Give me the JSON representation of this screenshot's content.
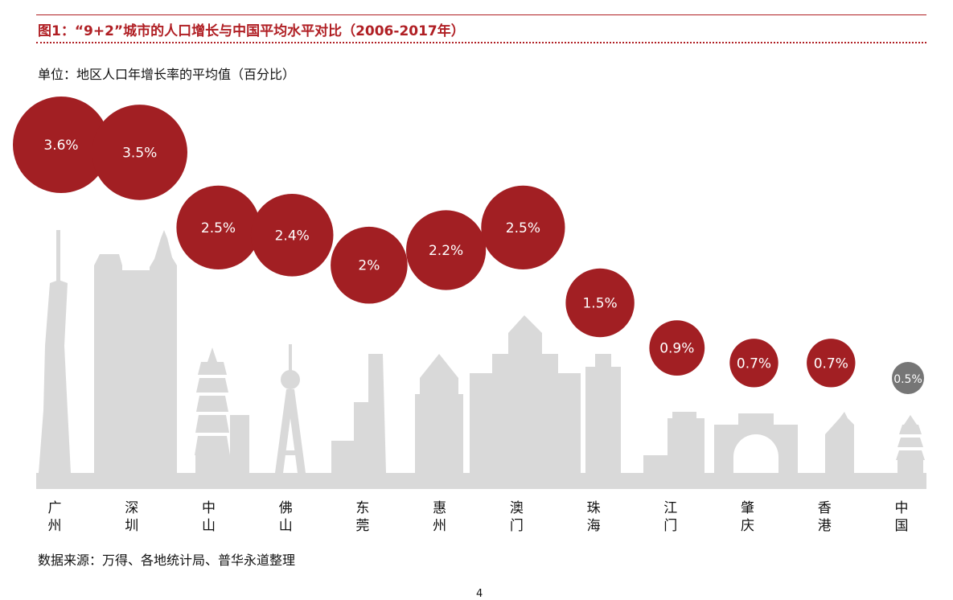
{
  "header": {
    "title": "图1：“9+2”城市的人口增长与中国平均水平对比（2006-2017年）",
    "unit": "单位：地区人口年增长率的平均值（百分比）"
  },
  "footer": {
    "source": "数据来源：万得、各地统计局、普华永道整理",
    "page_number": "4"
  },
  "colors": {
    "accent": "#b01f24",
    "bubble": "#a21f23",
    "bubble_china": "#767676",
    "skyline": "#d9d9d9"
  },
  "chart_data": {
    "type": "bubble",
    "categories": [
      "广州",
      "深圳",
      "中山",
      "佛山",
      "东莞",
      "惠州",
      "澳门",
      "珠海",
      "江门",
      "肇庆",
      "香港",
      "中国"
    ],
    "values": [
      3.6,
      3.5,
      2.5,
      2.4,
      2.0,
      2.2,
      2.5,
      1.5,
      0.9,
      0.7,
      0.7,
      0.5
    ],
    "value_labels": [
      "3.6%",
      "3.5%",
      "2.5%",
      "2.4%",
      "2%",
      "2.2%",
      "2.5%",
      "1.5%",
      "0.9%",
      "0.7%",
      "0.7%",
      "0.5%"
    ],
    "unit": "%",
    "highlight": "中国",
    "grid": false,
    "legend": "none"
  }
}
